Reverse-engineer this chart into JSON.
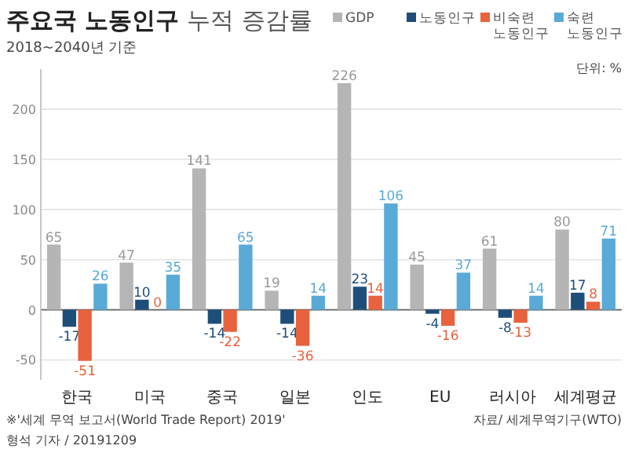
{
  "chart_data": {
    "type": "bar",
    "title": "주요국 노동인구",
    "subtitle": "누적 증감률",
    "legend_title": "2018~2040년 기준",
    "categories": [
      "한국",
      "미국",
      "중국",
      "일본",
      "인도",
      "EU",
      "러시아",
      "세계평균"
    ],
    "series": [
      {
        "name": "GDP",
        "color": "#b5b5b5",
        "values": [
          65,
          47,
          141,
          19,
          226,
          45,
          61,
          80
        ]
      },
      {
        "name": "노동인구",
        "color": "#1d4e7a",
        "values": [
          -17,
          10,
          -14,
          -14,
          23,
          -4,
          -8,
          17
        ]
      },
      {
        "name": "비숙련 노동인구",
        "color": "#e8623e",
        "values": [
          -51,
          0,
          -22,
          -36,
          14,
          -16,
          -13,
          8
        ]
      },
      {
        "name": "숙련 노동인구",
        "color": "#5aaad8",
        "values": [
          26,
          35,
          65,
          14,
          106,
          37,
          14,
          71
        ]
      }
    ],
    "ylim": [
      -70,
      240
    ],
    "yticks": [
      -50,
      0,
      50,
      100,
      150,
      200
    ],
    "grid": "y",
    "legend": "top right",
    "data_labels": true,
    "annotations": [
      "단위: %",
      "※'세계 무역 보고서(World Trade Report) 2019'",
      "형석 기자 / 20191209",
      "자료/ 세계무역기구(WTO)"
    ]
  }
}
